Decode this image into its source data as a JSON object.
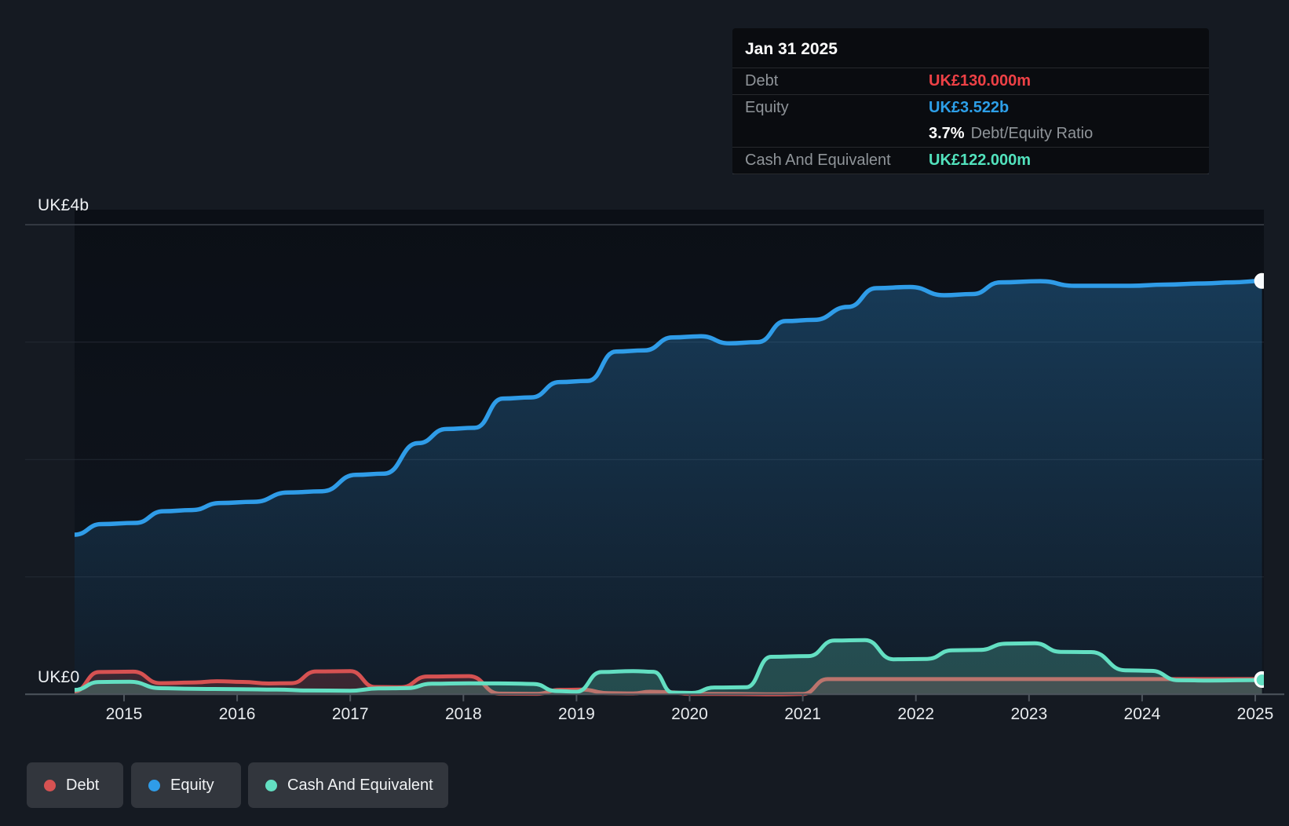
{
  "tooltip": {
    "date": "Jan 31 2025",
    "debt_label": "Debt",
    "debt_value": "UK£130.000m",
    "equity_label": "Equity",
    "equity_value": "UK£3.522b",
    "ratio_value": "3.7%",
    "ratio_label": "Debt/Equity Ratio",
    "cash_label": "Cash And Equivalent",
    "cash_value": "UK£122.000m"
  },
  "axis": {
    "y_top_label": "UK£4b",
    "y_zero_label": "UK£0",
    "x_labels": [
      "2015",
      "2016",
      "2017",
      "2018",
      "2019",
      "2020",
      "2021",
      "2022",
      "2023",
      "2024",
      "2025"
    ]
  },
  "legend": [
    {
      "label": "Debt",
      "color": "#d65252"
    },
    {
      "label": "Equity",
      "color": "#2f9ce8"
    },
    {
      "label": "Cash And Equivalent",
      "color": "#63dfc2"
    }
  ],
  "colors": {
    "page_bg": "#151a22",
    "plot_top": "#0b0f16",
    "plot_bottom": "#10161f",
    "grid": "#232932",
    "grid_strong": "#3d434c",
    "axis_line": "#4d545c",
    "equity": "#2f9ce8",
    "debt": "#d65252",
    "cash": "#63dfc2",
    "equity_fill_top": "rgba(45,140,210,0.34)",
    "equity_fill_bottom": "rgba(45,140,210,0.05)",
    "debt_fill": "rgba(214,82,82,0.21)",
    "cash_fill": "rgba(100,224,196,0.24)",
    "tooltip_debt": "#ee4146",
    "tooltip_equity": "#2d9fe8",
    "tooltip_cash": "#52e2bd"
  },
  "chart_data": {
    "type": "area",
    "title": "Debt to Equity history",
    "unit": "UK£",
    "x_range": [
      2014.56,
      2025.06
    ],
    "ylim_billions": [
      0,
      4
    ],
    "gridlines_billions": [
      1,
      2,
      3,
      4
    ],
    "grid": "on",
    "legend_position": "bottom-left",
    "last_point_date": "Jan 31 2025",
    "series": [
      {
        "name": "Equity",
        "unit": "UK£ billions",
        "color": "#2f9ce8",
        "points": [
          [
            2014.56,
            1.36
          ],
          [
            2014.8,
            1.45
          ],
          [
            2015.1,
            1.46
          ],
          [
            2015.35,
            1.56
          ],
          [
            2015.6,
            1.57
          ],
          [
            2015.85,
            1.63
          ],
          [
            2016.15,
            1.64
          ],
          [
            2016.45,
            1.72
          ],
          [
            2016.75,
            1.73
          ],
          [
            2017.05,
            1.87
          ],
          [
            2017.3,
            1.88
          ],
          [
            2017.6,
            2.14
          ],
          [
            2017.85,
            2.26
          ],
          [
            2018.1,
            2.27
          ],
          [
            2018.35,
            2.52
          ],
          [
            2018.6,
            2.53
          ],
          [
            2018.85,
            2.66
          ],
          [
            2019.1,
            2.67
          ],
          [
            2019.35,
            2.92
          ],
          [
            2019.6,
            2.93
          ],
          [
            2019.85,
            3.04
          ],
          [
            2020.1,
            3.05
          ],
          [
            2020.35,
            2.99
          ],
          [
            2020.6,
            3.0
          ],
          [
            2020.85,
            3.18
          ],
          [
            2021.1,
            3.19
          ],
          [
            2021.4,
            3.3
          ],
          [
            2021.65,
            3.46
          ],
          [
            2021.95,
            3.47
          ],
          [
            2022.25,
            3.4
          ],
          [
            2022.5,
            3.41
          ],
          [
            2022.75,
            3.51
          ],
          [
            2023.1,
            3.52
          ],
          [
            2023.4,
            3.48
          ],
          [
            2023.9,
            3.48
          ],
          [
            2024.2,
            3.49
          ],
          [
            2024.55,
            3.5
          ],
          [
            2024.8,
            3.51
          ],
          [
            2025.06,
            3.522
          ]
        ]
      },
      {
        "name": "Debt",
        "unit": "UK£ millions",
        "color": "#d65252",
        "points": [
          [
            2014.56,
            25
          ],
          [
            2014.78,
            190
          ],
          [
            2015.08,
            193
          ],
          [
            2015.32,
            95
          ],
          [
            2015.6,
            100
          ],
          [
            2015.82,
            112
          ],
          [
            2016.05,
            106
          ],
          [
            2016.28,
            92
          ],
          [
            2016.48,
            95
          ],
          [
            2016.7,
            195
          ],
          [
            2017.0,
            197
          ],
          [
            2017.22,
            62
          ],
          [
            2017.45,
            60
          ],
          [
            2017.68,
            152
          ],
          [
            2018.05,
            155
          ],
          [
            2018.32,
            6
          ],
          [
            2018.65,
            5
          ],
          [
            2018.85,
            38
          ],
          [
            2019.05,
            40
          ],
          [
            2019.28,
            10
          ],
          [
            2019.5,
            8
          ],
          [
            2019.65,
            22
          ],
          [
            2019.82,
            18
          ],
          [
            2020.0,
            4
          ],
          [
            2020.45,
            3
          ],
          [
            2020.75,
            0
          ],
          [
            2021.0,
            3
          ],
          [
            2021.22,
            130
          ],
          [
            2021.6,
            130
          ],
          [
            2022.2,
            130
          ],
          [
            2022.8,
            130
          ],
          [
            2023.5,
            130
          ],
          [
            2024.2,
            130
          ],
          [
            2024.7,
            130
          ],
          [
            2025.06,
            130
          ]
        ]
      },
      {
        "name": "Cash And Equivalent",
        "unit": "UK£ millions",
        "color": "#63dfc2",
        "points": [
          [
            2014.56,
            38
          ],
          [
            2014.78,
            105
          ],
          [
            2015.05,
            108
          ],
          [
            2015.32,
            52
          ],
          [
            2015.6,
            47
          ],
          [
            2016.0,
            44
          ],
          [
            2016.35,
            41
          ],
          [
            2016.62,
            33
          ],
          [
            2017.0,
            31
          ],
          [
            2017.25,
            50
          ],
          [
            2017.5,
            53
          ],
          [
            2017.72,
            90
          ],
          [
            2018.05,
            94
          ],
          [
            2018.4,
            92
          ],
          [
            2018.62,
            88
          ],
          [
            2018.82,
            28
          ],
          [
            2019.0,
            22
          ],
          [
            2019.22,
            190
          ],
          [
            2019.5,
            198
          ],
          [
            2019.68,
            192
          ],
          [
            2019.85,
            15
          ],
          [
            2020.02,
            12
          ],
          [
            2020.22,
            58
          ],
          [
            2020.5,
            60
          ],
          [
            2020.72,
            320
          ],
          [
            2021.05,
            326
          ],
          [
            2021.28,
            458
          ],
          [
            2021.55,
            462
          ],
          [
            2021.8,
            298
          ],
          [
            2022.1,
            302
          ],
          [
            2022.32,
            375
          ],
          [
            2022.56,
            378
          ],
          [
            2022.8,
            432
          ],
          [
            2023.05,
            435
          ],
          [
            2023.28,
            362
          ],
          [
            2023.55,
            360
          ],
          [
            2023.85,
            205
          ],
          [
            2024.08,
            200
          ],
          [
            2024.32,
            120
          ],
          [
            2024.6,
            118
          ],
          [
            2025.06,
            122
          ]
        ]
      }
    ]
  }
}
